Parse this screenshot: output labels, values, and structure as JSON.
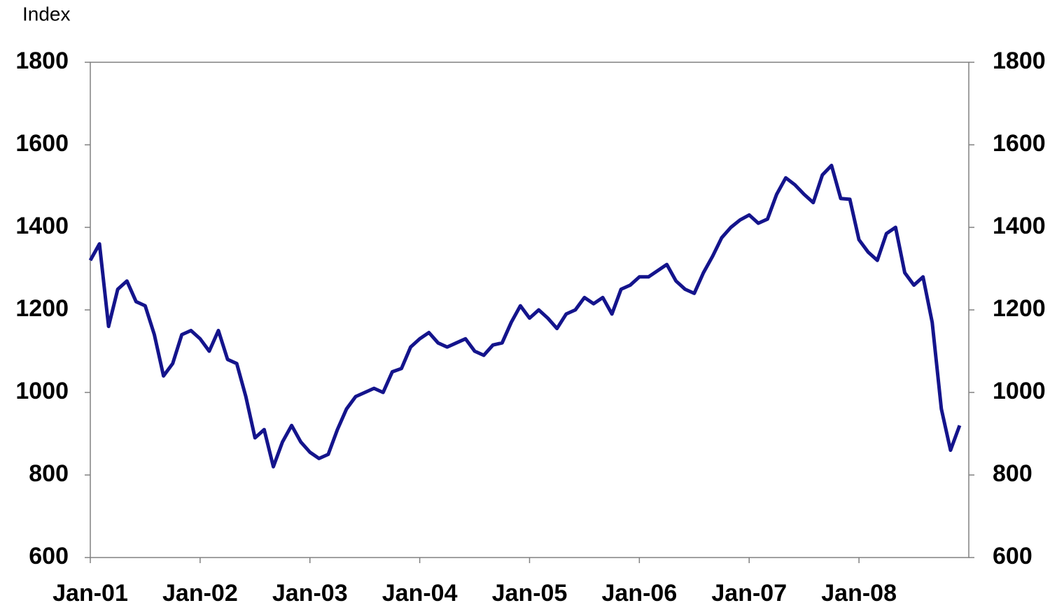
{
  "chart_data": {
    "type": "line",
    "y_label": "Index",
    "categories": [
      "Jan-01",
      null,
      null,
      null,
      null,
      null,
      null,
      null,
      null,
      null,
      null,
      null,
      "Jan-02",
      null,
      null,
      null,
      null,
      null,
      null,
      null,
      null,
      null,
      null,
      null,
      "Jan-03",
      null,
      null,
      null,
      null,
      null,
      null,
      null,
      null,
      null,
      null,
      null,
      "Jan-04",
      null,
      null,
      null,
      null,
      null,
      null,
      null,
      null,
      null,
      null,
      null,
      "Jan-05",
      null,
      null,
      null,
      null,
      null,
      null,
      null,
      null,
      null,
      null,
      null,
      "Jan-06",
      null,
      null,
      null,
      null,
      null,
      null,
      null,
      null,
      null,
      null,
      null,
      "Jan-07",
      null,
      null,
      null,
      null,
      null,
      null,
      null,
      null,
      null,
      null,
      null,
      "Jan-08",
      null,
      null,
      null,
      null,
      null,
      null,
      null,
      null,
      null,
      null,
      null
    ],
    "series": [
      {
        "name": "Index",
        "color": "#14148c",
        "values": [
          1320,
          1360,
          1160,
          1250,
          1270,
          1220,
          1210,
          1140,
          1040,
          1070,
          1140,
          1150,
          1130,
          1100,
          1150,
          1080,
          1070,
          990,
          890,
          910,
          820,
          880,
          920,
          880,
          855,
          840,
          850,
          910,
          960,
          990,
          1000,
          1010,
          1000,
          1050,
          1058,
          1110,
          1130,
          1145,
          1120,
          1110,
          1120,
          1130,
          1100,
          1090,
          1115,
          1120,
          1170,
          1210,
          1180,
          1200,
          1180,
          1155,
          1190,
          1200,
          1230,
          1215,
          1230,
          1190,
          1250,
          1260,
          1280,
          1280,
          1295,
          1310,
          1270,
          1250,
          1240,
          1290,
          1330,
          1375,
          1400,
          1418,
          1430,
          1410,
          1420,
          1480,
          1520,
          1503,
          1480,
          1460,
          1527,
          1550,
          1470,
          1468,
          1370,
          1340,
          1320,
          1385,
          1400,
          1290,
          1260,
          1280,
          1170,
          960,
          860,
          920
        ]
      }
    ],
    "ylim": [
      600,
      1800
    ],
    "yticks": [
      600,
      800,
      1000,
      1200,
      1400,
      1600,
      1800
    ],
    "y2lim": [
      600,
      1800
    ],
    "y2ticks": [
      600,
      800,
      1000,
      1200,
      1400,
      1600,
      1800
    ]
  }
}
